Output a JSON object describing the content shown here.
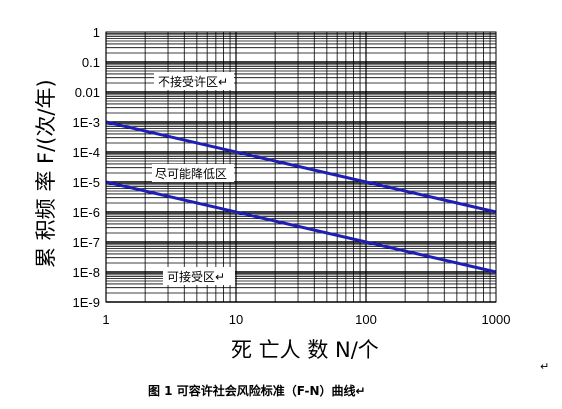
{
  "chart_data": {
    "type": "line",
    "x_scale": "log",
    "y_scale": "log",
    "xlim": [
      1,
      1000
    ],
    "ylim": [
      1e-09,
      1
    ],
    "xlabel": "死 亡人 数 N/个",
    "ylabel": "累 积频 率 F/(次/年)",
    "x_ticks": [
      "1",
      "10",
      "100",
      "1000"
    ],
    "y_ticks": [
      "1",
      "0.1",
      "0.01",
      "1E-3",
      "1E-4",
      "1E-5",
      "1E-6",
      "1E-7",
      "1E-8",
      "1E-9"
    ],
    "grid": true,
    "series": [
      {
        "x": [
          1,
          1000
        ],
        "y": [
          0.001,
          1e-06
        ]
      },
      {
        "x": [
          1,
          1000
        ],
        "y": [
          1e-05,
          1e-08
        ]
      }
    ],
    "annotations": [
      "不接受许区↵",
      "尽可能降低区",
      "可接受区↵"
    ],
    "colors": {
      "line": "#1f1fb4",
      "grid": "#000000"
    }
  },
  "caption": "图 1  可容许社会风险标准（F-N）曲线↵",
  "corner_mark": "↵"
}
